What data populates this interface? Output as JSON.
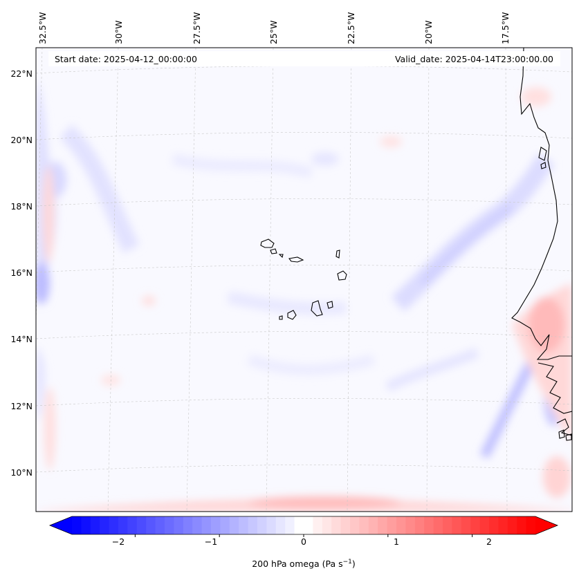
{
  "map": {
    "start_date_label": "Start date: 2025-04-12_00:00:00",
    "valid_date_label": "Valid_date: 2025-04-14T23:00:00.00",
    "lon_labels": [
      "32.5°W",
      "30°W",
      "27.5°W",
      "25°W",
      "22.5°W",
      "20°W",
      "17.5°W"
    ],
    "lat_labels": [
      "22°N",
      "20°N",
      "18°N",
      "16°N",
      "14°N",
      "12°N",
      "10°N"
    ]
  },
  "colorbar": {
    "label_main": "200 hPa omega (Pa s",
    "label_sup": "−1",
    "label_close": ")",
    "ticks": [
      "−2",
      "−1",
      "0",
      "1",
      "2"
    ],
    "min": -2.75,
    "max": 2.75,
    "tick_values": [
      -2,
      -1,
      0,
      1,
      2
    ],
    "neg_color": "#0000ff",
    "pos_color": "#ff0000"
  },
  "colors": {
    "ocean_bg": "#f9f9ff",
    "coast": "#000000",
    "grid": "#c8c8c8"
  }
}
